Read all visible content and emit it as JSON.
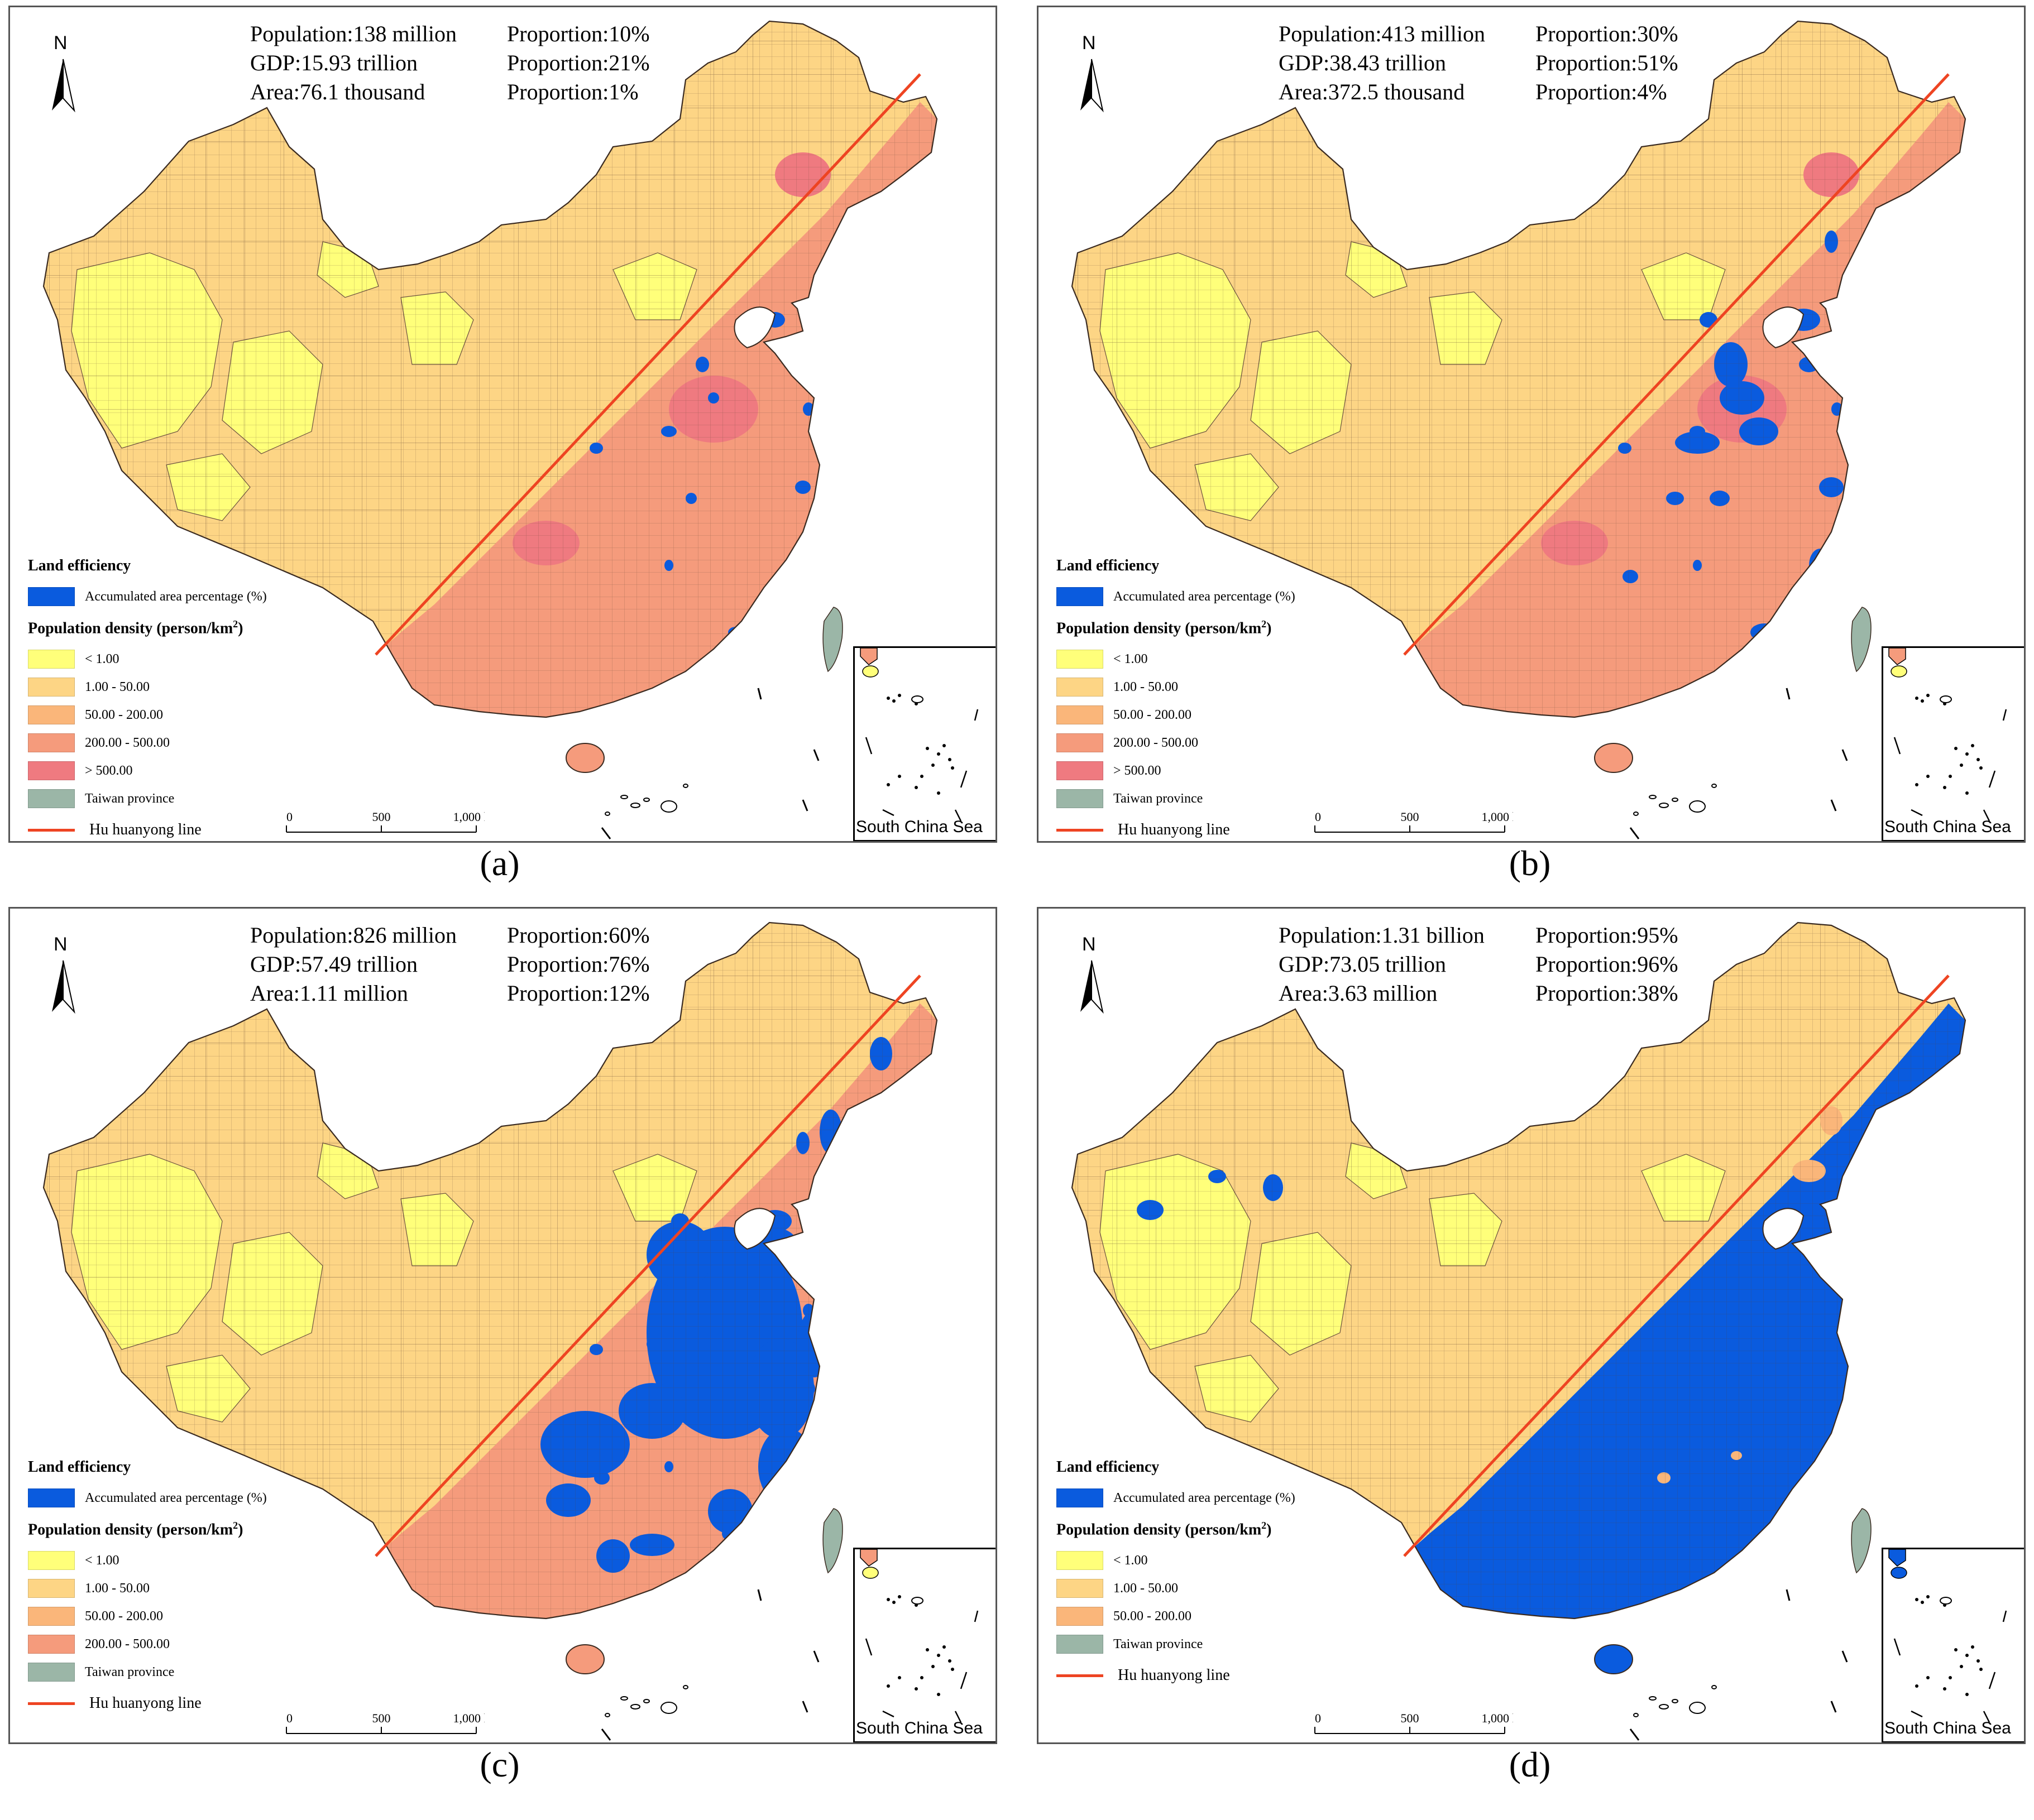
{
  "colors": {
    "lt1": "#ffff7a",
    "c1_50": "#fdd585",
    "c50_200": "#fab67a",
    "c200_500": "#f59b7c",
    "gt500": "#ef7a80",
    "efficiency": "#0a5bde",
    "taiwan": "#9bb6a7",
    "hu_line": "#ee4422"
  },
  "common": {
    "north": "N",
    "land_efficiency": "Land efficiency",
    "accumulated": "Accumulated area percentage (%)",
    "pop_density_title": "Population density (person/km",
    "pop_density_sup": "2",
    "pop_density_close": ")",
    "taiwan_label": "Taiwan province",
    "hu_line_label": "Hu huanyong line",
    "scale": {
      "zero": "0",
      "mid": "500",
      "end": "1,000 km"
    },
    "inset_label": "South China Sea"
  },
  "legend_items": {
    "lt1": "< 1.00",
    "c1_50": "1.00 - 50.00",
    "c50_200": "50.00 - 200.00",
    "c200_500": "200.00 - 500.00",
    "gt500": "> 500.00"
  },
  "panels": [
    {
      "caption": "(a)",
      "population": "Population:138 million",
      "population_prop": "Proportion:10%",
      "gdp": "GDP:15.93 trillion",
      "gdp_prop": "Proportion:21%",
      "area": "Area:76.1 thousand",
      "area_prop": "Proportion:1%",
      "legend_classes": [
        "lt1",
        "c1_50",
        "c50_200",
        "c200_500",
        "gt500"
      ],
      "east_fill": "c200_500",
      "blue_level": 1
    },
    {
      "caption": "(b)",
      "population": "Population:413 million",
      "population_prop": "Proportion:30%",
      "gdp": "GDP:38.43 trillion",
      "gdp_prop": "Proportion:51%",
      "area": "Area:372.5 thousand",
      "area_prop": "Proportion:4%",
      "legend_classes": [
        "lt1",
        "c1_50",
        "c50_200",
        "c200_500",
        "gt500"
      ],
      "east_fill": "c200_500",
      "blue_level": 2
    },
    {
      "caption": "(c)",
      "population": "Population:826 million",
      "population_prop": "Proportion:60%",
      "gdp": "GDP:57.49 trillion",
      "gdp_prop": "Proportion:76%",
      "area": "Area:1.11 million",
      "area_prop": "Proportion:12%",
      "legend_classes": [
        "lt1",
        "c1_50",
        "c50_200",
        "c200_500"
      ],
      "east_fill": "c200_500",
      "blue_level": 3
    },
    {
      "caption": "(d)",
      "population": "Population:1.31 billion",
      "population_prop": "Proportion:95%",
      "gdp": "GDP:73.05 trillion",
      "gdp_prop": "Proportion:96%",
      "area": "Area:3.63 million",
      "area_prop": "Proportion:38%",
      "legend_classes": [
        "lt1",
        "c1_50",
        "c50_200"
      ],
      "east_fill": "c50_200",
      "blue_level": 4
    }
  ]
}
